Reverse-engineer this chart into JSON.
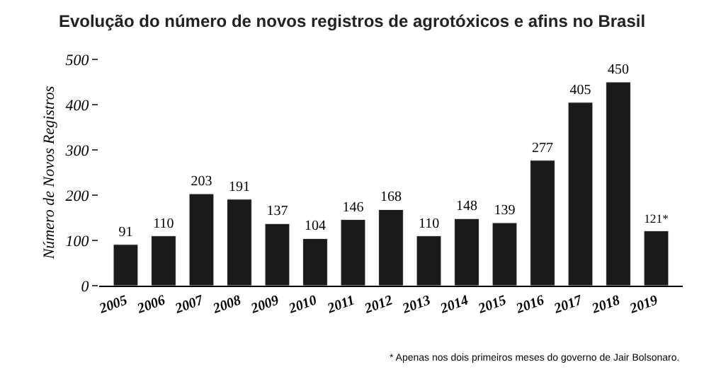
{
  "chart_data": {
    "type": "bar",
    "title": "Evolução do número de novos registros de agrotóxicos e afins no Brasil",
    "ylabel": "Número de Novos Registros",
    "categories": [
      "2005",
      "2006",
      "2007",
      "2008",
      "2009",
      "2010",
      "2011",
      "2012",
      "2013",
      "2014",
      "2015",
      "2016",
      "2017",
      "2018",
      "2019"
    ],
    "values": [
      91,
      110,
      203,
      191,
      137,
      104,
      146,
      168,
      110,
      148,
      139,
      277,
      405,
      450,
      121
    ],
    "value_labels": [
      "91",
      "110",
      "203",
      "191",
      "137",
      "104",
      "146",
      "168",
      "110",
      "148",
      "139",
      "277",
      "405",
      "450",
      "121*"
    ],
    "color": "#1a1a1a",
    "ylim": [
      0,
      500
    ],
    "yticks": [
      0,
      100,
      200,
      300,
      400,
      500
    ],
    "annotations": [
      "* Apenas nos dois primeiros meses do governo de Jair Bolsonaro."
    ]
  }
}
